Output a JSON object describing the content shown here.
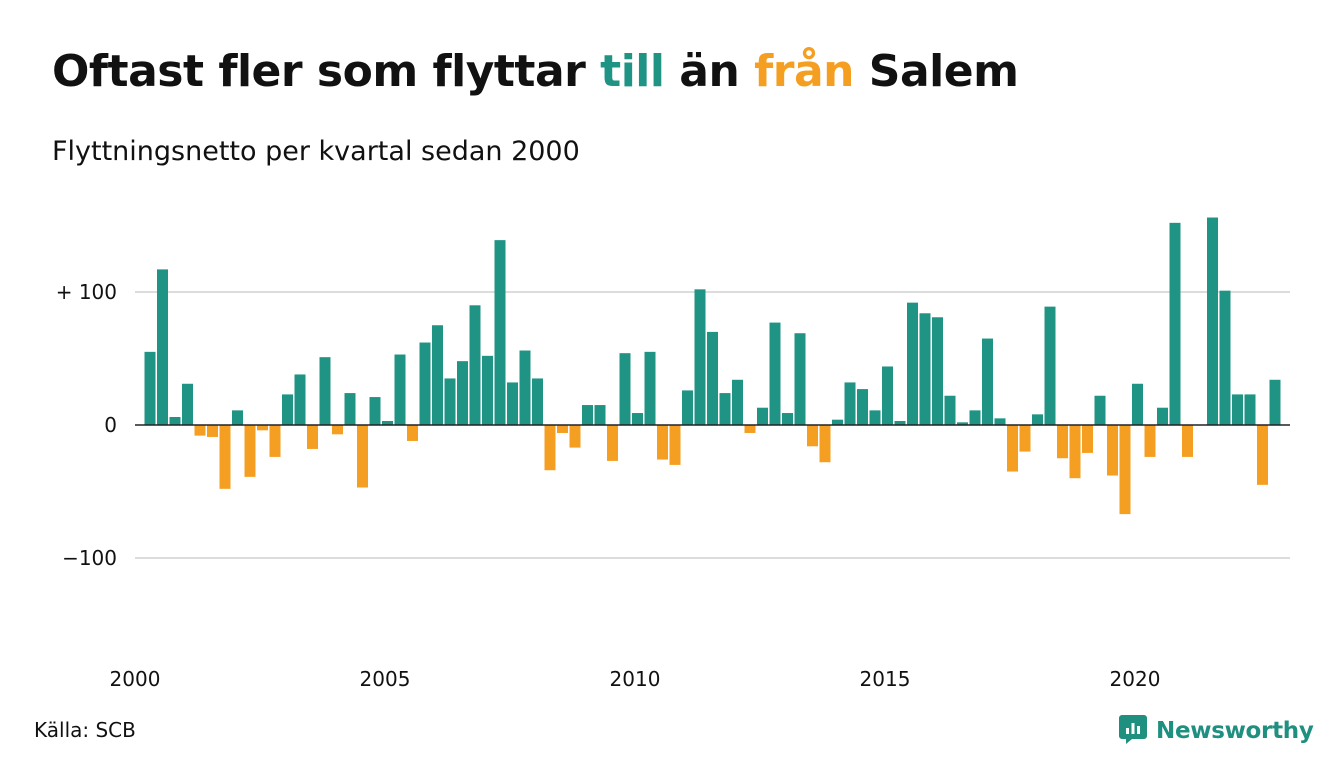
{
  "title": {
    "prefix": "Oftast fler som flyttar ",
    "till": "till",
    "middle": " än ",
    "fran": "från",
    "suffix": " Salem"
  },
  "subtitle": "Flyttningsnetto per kvartal sedan 2000",
  "source": "Källa: SCB",
  "brand": {
    "name": "Newsworthy",
    "icon": "newsworthy-logo-icon"
  },
  "colors": {
    "positive": "#1f9384",
    "negative": "#f59f22",
    "grid": "#dcdcdc",
    "axis": "#222222",
    "brand": "#1f8f80"
  },
  "chart_data": {
    "type": "bar",
    "title": "Oftast fler som flyttar till än från Salem",
    "subtitle": "Flyttningsnetto per kvartal sedan 2000",
    "x_start_year": 2000,
    "periods_per_year": 4,
    "ylim": [
      -165,
      165
    ],
    "y_ticks": [
      {
        "value": 100,
        "label": "+ 100"
      },
      {
        "value": 0,
        "label": "0"
      },
      {
        "value": -100,
        "label": "−100"
      }
    ],
    "x_ticks": [
      "2000",
      "2005",
      "2010",
      "2015",
      "2020"
    ],
    "grid": true,
    "values": [
      55,
      117,
      6,
      31,
      -8,
      -9,
      -48,
      11,
      -39,
      -4,
      -24,
      23,
      38,
      -18,
      51,
      -7,
      24,
      -47,
      21,
      3,
      53,
      -12,
      62,
      75,
      35,
      48,
      90,
      52,
      139,
      32,
      56,
      35,
      -34,
      -6,
      -17,
      15,
      15,
      -27,
      54,
      9,
      55,
      -26,
      -30,
      26,
      102,
      70,
      24,
      34,
      -6,
      13,
      77,
      9,
      69,
      -16,
      -28,
      4,
      32,
      27,
      11,
      44,
      3,
      92,
      84,
      81,
      22,
      2,
      11,
      65,
      5,
      -35,
      -20,
      8,
      89,
      -25,
      -40,
      -21,
      22,
      -38,
      -67,
      31,
      -24,
      13,
      152,
      -24,
      0,
      156,
      101,
      23,
      23,
      -45,
      34
    ]
  }
}
